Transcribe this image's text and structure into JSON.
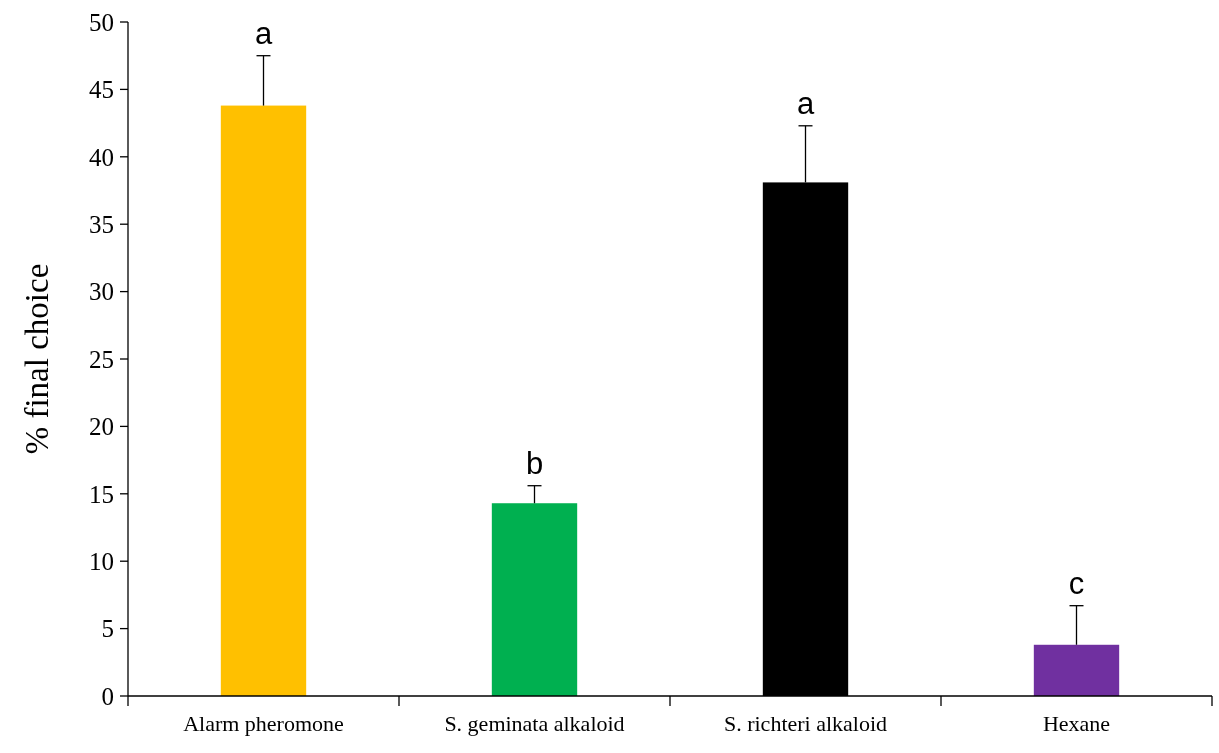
{
  "chart_data": {
    "type": "bar",
    "ylabel": "% final choice",
    "categories": [
      "Alarm pheromone",
      "S. geminata alkaloid",
      "S. richteri alkaloid",
      "Hexane"
    ],
    "values": [
      43.8,
      14.3,
      38.1,
      3.8
    ],
    "colors": [
      "#ffc000",
      "#00b050",
      "#000000",
      "#7030a0"
    ],
    "errors": [
      [
        43.8,
        47.5
      ],
      [
        14.3,
        15.6
      ],
      [
        38.1,
        42.3
      ],
      [
        3.8,
        6.7
      ]
    ],
    "ylim": [
      0,
      50
    ],
    "yticks": [
      0,
      5,
      10,
      15,
      20,
      25,
      30,
      35,
      40,
      45,
      50
    ],
    "grid": false,
    "annotations": [
      {
        "text": "a",
        "x": "Alarm pheromone",
        "y": 47.5
      },
      {
        "text": "b",
        "x": "S. geminata alkaloid",
        "y": 15.6
      },
      {
        "text": "a",
        "x": "S. richteri alkaloid",
        "y": 42.3
      },
      {
        "text": "c",
        "x": "Hexane",
        "y": 6.7
      }
    ]
  }
}
